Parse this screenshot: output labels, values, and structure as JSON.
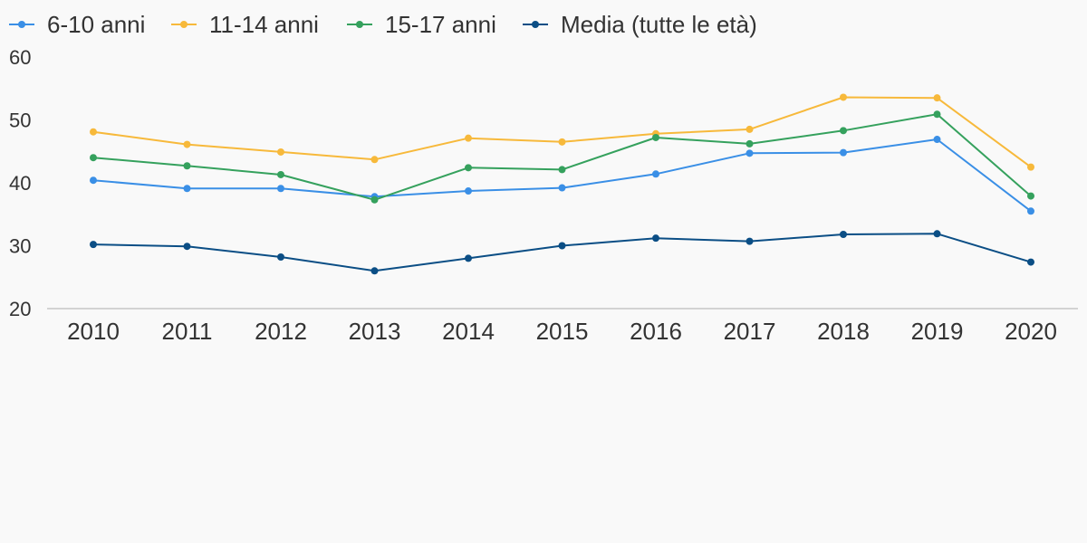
{
  "chart_data": {
    "type": "line",
    "title": "",
    "xlabel": "",
    "ylabel": "",
    "x": [
      "2010",
      "2011",
      "2012",
      "2013",
      "2014",
      "2015",
      "2016",
      "2017",
      "2018",
      "2019",
      "2020"
    ],
    "ylim": [
      20,
      60
    ],
    "yticks": [
      20,
      30,
      40,
      50,
      60
    ],
    "grid": false,
    "legend_position": "top",
    "series": [
      {
        "name": "6-10 anni",
        "color": "#3a8fe6",
        "values": [
          40.4,
          39.1,
          39.1,
          37.8,
          38.7,
          39.2,
          41.4,
          44.7,
          44.8,
          46.9,
          35.5
        ]
      },
      {
        "name": "11-14 anni",
        "color": "#f7b93b",
        "values": [
          48.1,
          46.1,
          44.9,
          43.7,
          47.1,
          46.5,
          47.8,
          48.5,
          53.6,
          53.5,
          42.5
        ]
      },
      {
        "name": "15-17 anni",
        "color": "#35a15d",
        "values": [
          44.0,
          42.7,
          41.3,
          37.3,
          42.4,
          42.1,
          47.2,
          46.2,
          48.3,
          50.9,
          37.9
        ]
      },
      {
        "name": "Media (tutte le età)",
        "color": "#0b4e85",
        "values": [
          30.2,
          29.9,
          28.2,
          26.0,
          28.0,
          30.0,
          31.2,
          30.7,
          31.8,
          31.9,
          27.4
        ]
      }
    ]
  }
}
